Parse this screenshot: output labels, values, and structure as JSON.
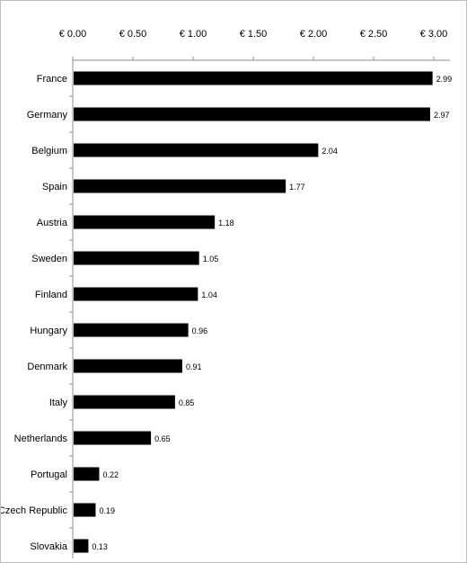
{
  "chart_data": {
    "type": "bar",
    "orientation": "horizontal",
    "axis_position": "top",
    "xlim": [
      0,
      3.0
    ],
    "tick_values": [
      0,
      0.5,
      1.0,
      1.5,
      2.0,
      2.5,
      3.0
    ],
    "tick_labels": [
      "€ 0.00",
      "€ 0.50",
      "€ 1.00",
      "€ 1.50",
      "€ 2.00",
      "€ 2.50",
      "€ 3.00"
    ],
    "grid": false,
    "bar_color": "#000000",
    "categories": [
      "France",
      "Germany",
      "Belgium",
      "Spain",
      "Austria",
      "Sweden",
      "Finland",
      "Hungary",
      "Denmark",
      "Italy",
      "Netherlands",
      "Portugal",
      "Czech Republic",
      "Slovakia"
    ],
    "values": [
      2.99,
      2.97,
      2.04,
      1.77,
      1.18,
      1.05,
      1.04,
      0.96,
      0.91,
      0.85,
      0.65,
      0.22,
      0.19,
      0.13
    ],
    "value_labels": [
      "2.99",
      "2.97",
      "2.04",
      "1.77",
      "1.18",
      "1.05",
      "1.04",
      "0.96",
      "0.91",
      "0.85",
      "0.65",
      "0.22",
      "0.19",
      "0.13"
    ]
  }
}
